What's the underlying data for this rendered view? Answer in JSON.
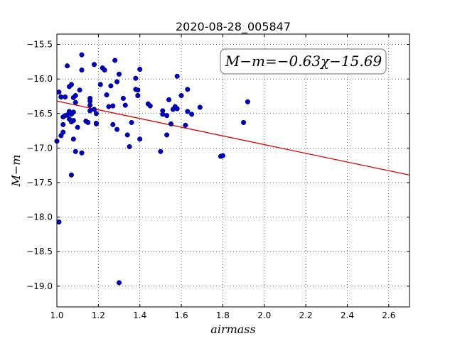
{
  "chart_data": {
    "type": "scatter",
    "title": "2020-08-28_005847",
    "xlabel": "airmass",
    "ylabel": "M−m",
    "xlim": [
      1.0,
      2.7
    ],
    "ylim": [
      -19.3,
      -15.35
    ],
    "y_inverted": true,
    "grid": true,
    "grid_style": "dotted",
    "x_ticks": [
      "1.0",
      "1.2",
      "1.4",
      "1.6",
      "1.8",
      "2.0",
      "2.2",
      "2.4",
      "2.6"
    ],
    "y_ticks": [
      "−15.5",
      "−16.0",
      "−16.5",
      "−17.0",
      "−17.5",
      "−18.0",
      "−18.5",
      "−19.0"
    ],
    "point_color": "#0000cc",
    "fit_color": "#dd0000",
    "annotation": "M−m=−0.63χ−15.69",
    "fit": {
      "slope": -0.63,
      "intercept": -15.69
    },
    "points": [
      [
        1.0,
        -16.9
      ],
      [
        1.01,
        -18.07
      ],
      [
        1.01,
        -16.19
      ],
      [
        1.02,
        -16.26
      ],
      [
        1.02,
        -16.82
      ],
      [
        1.03,
        -16.55
      ],
      [
        1.03,
        -16.77
      ],
      [
        1.03,
        -16.66
      ],
      [
        1.04,
        -16.53
      ],
      [
        1.04,
        -16.26
      ],
      [
        1.05,
        -15.81
      ],
      [
        1.05,
        -16.52
      ],
      [
        1.06,
        -16.11
      ],
      [
        1.06,
        -16.47
      ],
      [
        1.06,
        -16.58
      ],
      [
        1.07,
        -16.08
      ],
      [
        1.07,
        -16.51
      ],
      [
        1.07,
        -16.62
      ],
      [
        1.07,
        -17.39
      ],
      [
        1.08,
        -16.48
      ],
      [
        1.08,
        -16.6
      ],
      [
        1.08,
        -16.87
      ],
      [
        1.08,
        -16.27
      ],
      [
        1.09,
        -16.34
      ],
      [
        1.09,
        -16.24
      ],
      [
        1.09,
        -17.05
      ],
      [
        1.1,
        -16.7
      ],
      [
        1.11,
        -16.16
      ],
      [
        1.12,
        -15.65
      ],
      [
        1.12,
        -15.87
      ],
      [
        1.12,
        -17.07
      ],
      [
        1.14,
        -16.61
      ],
      [
        1.15,
        -16.63
      ],
      [
        1.16,
        -16.28
      ],
      [
        1.16,
        -16.38
      ],
      [
        1.16,
        -16.46
      ],
      [
        1.16,
        -16.32
      ],
      [
        1.18,
        -15.79
      ],
      [
        1.18,
        -16.44
      ],
      [
        1.19,
        -16.5
      ],
      [
        1.19,
        -16.64
      ],
      [
        1.19,
        -16.65
      ],
      [
        1.21,
        -16.08
      ],
      [
        1.22,
        -15.84
      ],
      [
        1.23,
        -15.87
      ],
      [
        1.24,
        -16.23
      ],
      [
        1.25,
        -16.4
      ],
      [
        1.26,
        -16.1
      ],
      [
        1.27,
        -16.39
      ],
      [
        1.27,
        -16.66
      ],
      [
        1.28,
        -15.73
      ],
      [
        1.29,
        -16.04
      ],
      [
        1.29,
        -16.73
      ],
      [
        1.3,
        -15.93
      ],
      [
        1.3,
        -18.95
      ],
      [
        1.32,
        -16.28
      ],
      [
        1.33,
        -16.38
      ],
      [
        1.34,
        -16.81
      ],
      [
        1.35,
        -16.98
      ],
      [
        1.36,
        -16.63
      ],
      [
        1.38,
        -16.15
      ],
      [
        1.38,
        -15.99
      ],
      [
        1.39,
        -16.16
      ],
      [
        1.39,
        -16.24
      ],
      [
        1.4,
        -16.87
      ],
      [
        1.4,
        -15.86
      ],
      [
        1.44,
        -16.36
      ],
      [
        1.45,
        -16.39
      ],
      [
        1.5,
        -17.05
      ],
      [
        1.51,
        -16.46
      ],
      [
        1.51,
        -16.51
      ],
      [
        1.53,
        -16.81
      ],
      [
        1.53,
        -16.53
      ],
      [
        1.54,
        -16.3
      ],
      [
        1.55,
        -16.65
      ],
      [
        1.56,
        -16.44
      ],
      [
        1.57,
        -16.4
      ],
      [
        1.58,
        -16.43
      ],
      [
        1.58,
        -15.96
      ],
      [
        1.6,
        -16.24
      ],
      [
        1.62,
        -16.67
      ],
      [
        1.63,
        -16.15
      ],
      [
        1.63,
        -16.47
      ],
      [
        1.65,
        -16.51
      ],
      [
        1.69,
        -16.41
      ],
      [
        1.79,
        -17.12
      ],
      [
        1.8,
        -17.11
      ],
      [
        1.9,
        -16.63
      ],
      [
        1.92,
        -16.33
      ]
    ]
  }
}
